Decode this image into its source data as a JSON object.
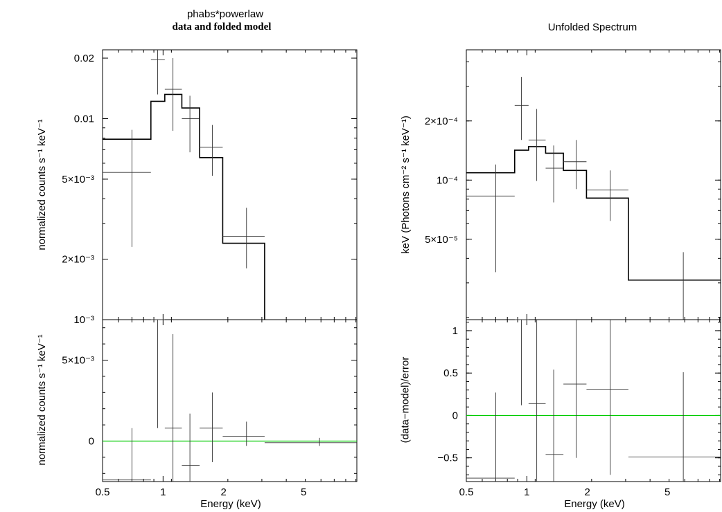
{
  "titles": {
    "left_line1": "phabs*powerlaw",
    "left_line2": "data and folded model",
    "right": "Unfolded Spectrum"
  },
  "colors": {
    "zero_line": "#00cc00",
    "axes": "#000000",
    "model": "#000000"
  },
  "chart_data": [
    {
      "type": "line",
      "panel": "top-left",
      "title": "data and folded model",
      "ylabel": "normalized counts s⁻¹ keV⁻¹",
      "xlabel": "",
      "xscale": "log",
      "yscale": "log",
      "xlim": [
        0.5,
        9.2
      ],
      "ylim": [
        0.001,
        0.022
      ],
      "x_ticks": [
        "0.5",
        "1",
        "2",
        "5"
      ],
      "y_ticks": [
        {
          "v": 0.02,
          "label": "0.02"
        },
        {
          "v": 0.01,
          "label": "0.01"
        },
        {
          "v": 0.005,
          "label": "5×10⁻³"
        },
        {
          "v": 0.002,
          "label": "2×10⁻³"
        },
        {
          "v": 0.001,
          "label": "10⁻³"
        }
      ],
      "model_step": {
        "edges": [
          0.5,
          0.87,
          1.02,
          1.24,
          1.52,
          1.98,
          3.2
        ],
        "values": [
          0.0079,
          0.0122,
          0.0132,
          0.0113,
          0.0064,
          0.0024
        ]
      },
      "data_points": [
        {
          "x": 0.7,
          "xlo": 0.5,
          "xhi": 0.87,
          "y": 0.0054,
          "ylo": 0.0023,
          "yhi": 0.0088
        },
        {
          "x": 0.94,
          "xlo": 0.87,
          "xhi": 1.02,
          "y": 0.0196,
          "ylo": 0.0132,
          "yhi": 0.0285
        },
        {
          "x": 1.12,
          "xlo": 1.02,
          "xhi": 1.24,
          "y": 0.014,
          "ylo": 0.0087,
          "yhi": 0.02
        },
        {
          "x": 1.36,
          "xlo": 1.24,
          "xhi": 1.52,
          "y": 0.01,
          "ylo": 0.0068,
          "yhi": 0.013
        },
        {
          "x": 1.76,
          "xlo": 1.52,
          "xhi": 1.98,
          "y": 0.0072,
          "ylo": 0.0052,
          "yhi": 0.0093
        },
        {
          "x": 2.6,
          "xlo": 1.98,
          "xhi": 3.2,
          "y": 0.0026,
          "ylo": 0.0018,
          "yhi": 0.0036
        }
      ]
    },
    {
      "type": "scatter",
      "panel": "bottom-left",
      "ylabel": "normalized counts s⁻¹ keV⁻¹",
      "xlabel": "Energy (keV)",
      "xscale": "log",
      "yscale": "linear",
      "xlim": [
        0.5,
        9.2
      ],
      "ylim": [
        -0.0025,
        0.0075
      ],
      "x_ticks": [
        "0.5",
        "1",
        "2",
        "5"
      ],
      "y_ticks": [
        {
          "v": 0.005,
          "label": "5×10⁻³"
        },
        {
          "v": 0,
          "label": "0"
        }
      ],
      "zero_line": 0,
      "data_points": [
        {
          "x": 0.7,
          "xlo": 0.5,
          "xhi": 0.87,
          "y": -0.0024,
          "ylo": -0.0026,
          "yhi": 0.0008
        },
        {
          "x": 0.94,
          "xlo": 0.87,
          "xhi": 1.02,
          "y": 0.0076,
          "ylo": 0.0008,
          "yhi": 0.008
        },
        {
          "x": 1.12,
          "xlo": 1.02,
          "xhi": 1.24,
          "y": 0.0008,
          "ylo": -0.0026,
          "yhi": 0.0066
        },
        {
          "x": 1.36,
          "xlo": 1.24,
          "xhi": 1.52,
          "y": -0.0015,
          "ylo": -0.0026,
          "yhi": 0.0017
        },
        {
          "x": 1.76,
          "xlo": 1.52,
          "xhi": 1.98,
          "y": 0.0008,
          "ylo": -0.0013,
          "yhi": 0.003
        },
        {
          "x": 2.6,
          "xlo": 1.98,
          "xhi": 3.2,
          "y": 0.0003,
          "ylo": -0.0003,
          "yhi": 0.0012
        },
        {
          "x": 6.0,
          "xlo": 3.2,
          "xhi": 9.2,
          "y": -0.0001,
          "ylo": -0.0003,
          "yhi": 0.0002
        }
      ]
    },
    {
      "type": "line",
      "panel": "top-right",
      "title": "Unfolded Spectrum",
      "ylabel": "keV (Photons cm⁻² s⁻¹ keV⁻¹)",
      "xlabel": "",
      "xscale": "log",
      "yscale": "log",
      "xlim": [
        0.5,
        9.2
      ],
      "ylim": [
        1.95e-05,
        0.00046
      ],
      "x_ticks": [
        "0.5",
        "1",
        "2",
        "5"
      ],
      "y_ticks": [
        {
          "v": 0.0002,
          "label": "2×10⁻⁴"
        },
        {
          "v": 0.0001,
          "label": "10⁻⁴"
        },
        {
          "v": 5e-05,
          "label": "5×10⁻⁵"
        }
      ],
      "model_step": {
        "edges": [
          0.5,
          0.87,
          1.02,
          1.24,
          1.52,
          1.98,
          3.2,
          9.2
        ],
        "values": [
          0.000109,
          0.000142,
          0.000148,
          0.000137,
          0.000112,
          8.1e-05,
          3.1e-05
        ]
      },
      "data_points": [
        {
          "x": 0.7,
          "xlo": 0.5,
          "xhi": 0.87,
          "y": 8.3e-05,
          "ylo": 3.4e-05,
          "yhi": 0.00012
        },
        {
          "x": 0.94,
          "xlo": 0.87,
          "xhi": 1.02,
          "y": 0.00024,
          "ylo": 0.00016,
          "yhi": 0.000335
        },
        {
          "x": 1.12,
          "xlo": 1.02,
          "xhi": 1.24,
          "y": 0.00016,
          "ylo": 9.9e-05,
          "yhi": 0.00023
        },
        {
          "x": 1.36,
          "xlo": 1.24,
          "xhi": 1.52,
          "y": 0.000115,
          "ylo": 7.7e-05,
          "yhi": 0.00015
        },
        {
          "x": 1.76,
          "xlo": 1.52,
          "xhi": 1.98,
          "y": 0.000124,
          "ylo": 9e-05,
          "yhi": 0.00016
        },
        {
          "x": 2.6,
          "xlo": 1.98,
          "xhi": 3.2,
          "y": 8.9e-05,
          "ylo": 6.2e-05,
          "yhi": 0.000112
        },
        {
          "x": 6.0,
          "xlo": 3.2,
          "xhi": 9.2,
          "y": 3.1e-05,
          "ylo": 1.95e-05,
          "yhi": 4.3e-05
        }
      ]
    },
    {
      "type": "scatter",
      "panel": "bottom-right",
      "ylabel": "(data−model)/error",
      "xlabel": "Energy (keV)",
      "xscale": "log",
      "yscale": "linear",
      "xlim": [
        0.5,
        9.2
      ],
      "ylim": [
        -0.78,
        1.13
      ],
      "x_ticks": [
        "0.5",
        "1",
        "2",
        "5"
      ],
      "y_ticks": [
        {
          "v": 1,
          "label": "1"
        },
        {
          "v": 0.5,
          "label": "0.5"
        },
        {
          "v": 0,
          "label": "0"
        },
        {
          "v": -0.5,
          "label": "−0.5"
        }
      ],
      "zero_line": 0,
      "data_points": [
        {
          "x": 0.7,
          "xlo": 0.5,
          "xhi": 0.87,
          "y": -0.74,
          "ylo": -0.78,
          "yhi": 0.27
        },
        {
          "x": 0.94,
          "xlo": 0.87,
          "xhi": 1.02,
          "y": 1.13,
          "ylo": 0.12,
          "yhi": 1.13
        },
        {
          "x": 1.12,
          "xlo": 1.02,
          "xhi": 1.24,
          "y": 0.14,
          "ylo": -0.78,
          "yhi": 1.13
        },
        {
          "x": 1.36,
          "xlo": 1.24,
          "xhi": 1.52,
          "y": -0.46,
          "ylo": -0.78,
          "yhi": 0.54
        },
        {
          "x": 1.76,
          "xlo": 1.52,
          "xhi": 1.98,
          "y": 0.37,
          "ylo": -0.5,
          "yhi": 1.13
        },
        {
          "x": 2.6,
          "xlo": 1.98,
          "xhi": 3.2,
          "y": 0.31,
          "ylo": -0.7,
          "yhi": 1.13
        },
        {
          "x": 6.0,
          "xlo": 3.2,
          "xhi": 9.2,
          "y": -0.49,
          "ylo": -0.78,
          "yhi": 0.51
        }
      ]
    }
  ]
}
